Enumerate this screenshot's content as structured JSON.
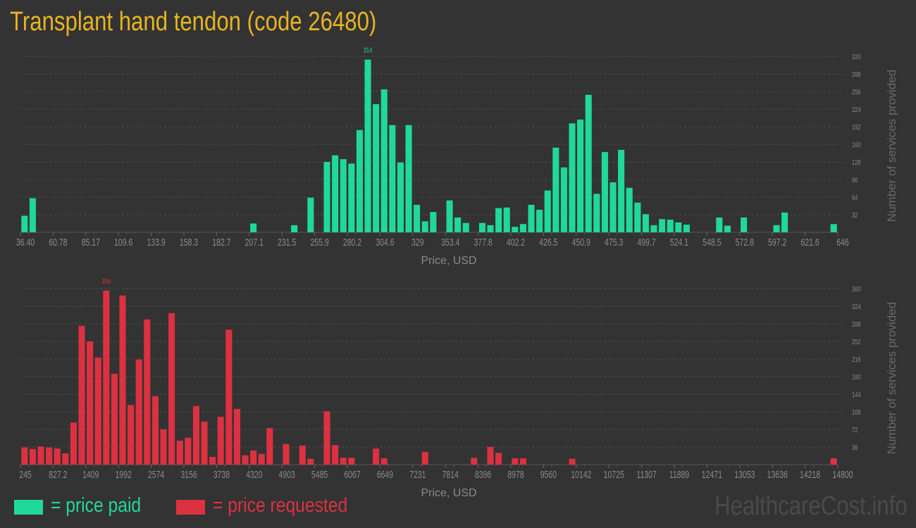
{
  "title": "Transplant hand tendon (code 26480)",
  "colors": {
    "background": "#333333",
    "paid": "#20d89a",
    "requested": "#dc3141",
    "title": "#e8b422",
    "axis_text": "#8a8a8a"
  },
  "legend": {
    "paid": "= price paid",
    "requested": "= price requested"
  },
  "watermark": "HealthcareCost.info",
  "chart_data": [
    {
      "type": "bar",
      "name": "price paid",
      "xlabel": "Price, USD",
      "ylabel": "Number of services provided",
      "ylim": [
        0,
        320
      ],
      "yticks": [
        32,
        64,
        96,
        128,
        160,
        192,
        224,
        256,
        288,
        320
      ],
      "xlim": [
        36.4,
        646
      ],
      "xticks": [
        "36.40",
        "60.78",
        "85.17",
        "109.6",
        "133.9",
        "158.3",
        "182.7",
        "207.1",
        "231.5",
        "255.9",
        "280.2",
        "304.6",
        "329",
        "353.4",
        "377.8",
        "402.2",
        "426.5",
        "450.9",
        "475.3",
        "499.7",
        "524.1",
        "548.5",
        "572.8",
        "597.2",
        "621.6",
        "646"
      ],
      "grid": true,
      "peak_label": "314",
      "values": [
        30,
        62,
        0,
        0,
        0,
        0,
        0,
        0,
        0,
        0,
        0,
        0,
        0,
        0,
        0,
        0,
        0,
        0,
        0,
        0,
        0,
        0,
        0,
        0,
        0,
        0,
        0,
        0,
        16,
        0,
        0,
        0,
        0,
        13,
        0,
        63,
        0,
        128,
        140,
        133,
        125,
        186,
        314,
        233,
        260,
        195,
        127,
        195,
        50,
        20,
        37,
        0,
        58,
        27,
        17,
        0,
        17,
        13,
        44,
        45,
        10,
        15,
        50,
        41,
        76,
        154,
        118,
        198,
        205,
        250,
        70,
        146,
        91,
        150,
        81,
        54,
        33,
        13,
        24,
        23,
        18,
        14,
        0,
        0,
        0,
        27,
        12,
        0,
        27,
        0,
        0,
        0,
        13,
        36,
        0,
        0,
        0,
        0,
        0,
        15
      ]
    },
    {
      "type": "bar",
      "name": "price requested",
      "xlabel": "Price, USD",
      "ylabel": "Number of services provided",
      "ylim": [
        0,
        360
      ],
      "yticks": [
        36,
        72,
        108,
        144,
        180,
        216,
        252,
        288,
        324,
        360
      ],
      "xlim": [
        245,
        14800
      ],
      "xticks": [
        "245",
        "827.2",
        "1409",
        "1992",
        "2574",
        "3156",
        "3738",
        "4320",
        "4903",
        "5485",
        "6067",
        "6649",
        "7231",
        "7814",
        "8396",
        "8978",
        "9560",
        "10142",
        "10725",
        "11307",
        "11889",
        "12471",
        "13053",
        "13636",
        "14218",
        "14800"
      ],
      "grid": true,
      "peak_label": "356",
      "values": [
        35,
        32,
        37,
        35,
        33,
        23,
        86,
        284,
        252,
        219,
        356,
        186,
        346,
        122,
        215,
        297,
        140,
        72,
        310,
        49,
        55,
        120,
        88,
        16,
        98,
        276,
        114,
        19,
        29,
        22,
        75,
        0,
        42,
        0,
        39,
        12,
        0,
        109,
        40,
        14,
        14,
        0,
        0,
        33,
        13,
        0,
        0,
        0,
        0,
        26,
        0,
        0,
        0,
        0,
        0,
        14,
        0,
        36,
        24,
        0,
        13,
        13,
        0,
        0,
        0,
        0,
        0,
        12,
        0,
        0,
        0,
        0,
        0,
        0,
        0,
        0,
        0,
        0,
        0,
        0,
        0,
        0,
        0,
        0,
        0,
        0,
        0,
        0,
        0,
        0,
        0,
        0,
        0,
        0,
        0,
        0,
        0,
        0,
        0,
        13
      ]
    }
  ]
}
